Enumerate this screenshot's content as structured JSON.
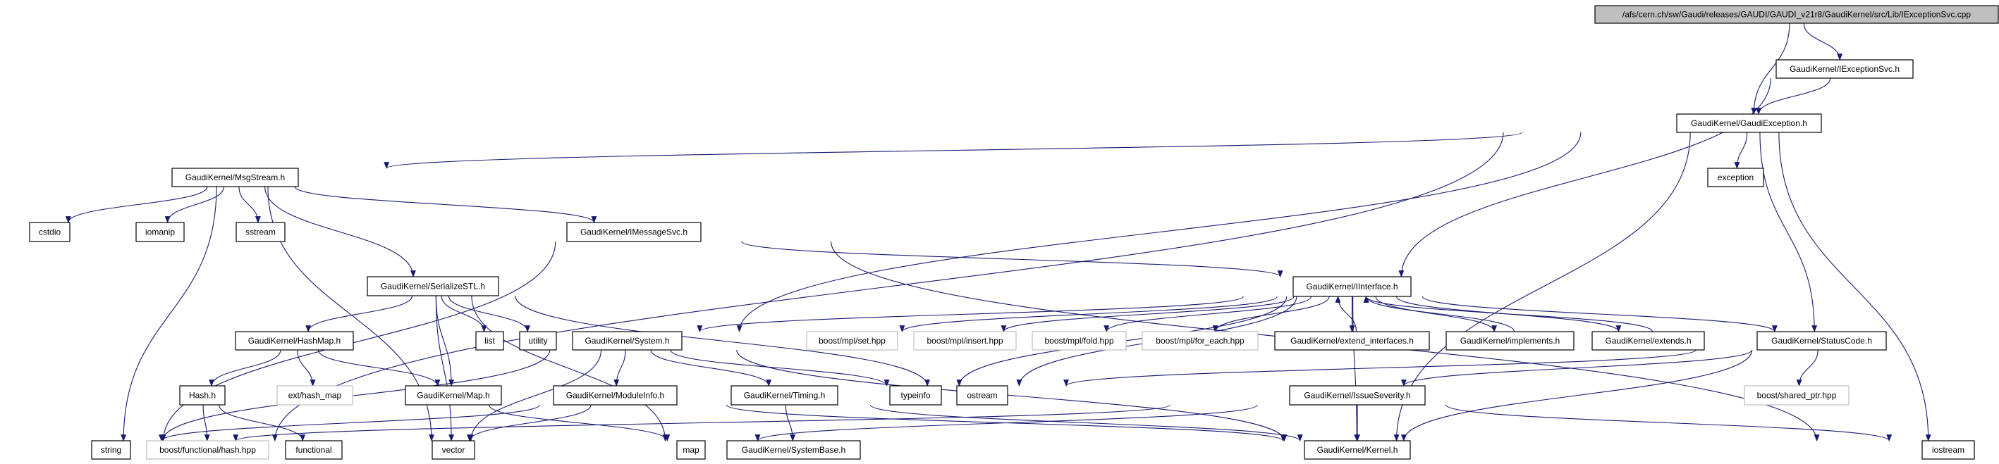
{
  "colors": {
    "edge": "#191970",
    "root_fill": "#bfbfbf",
    "missing_border": "#bfbfbf"
  },
  "nodes": {
    "root": {
      "label": "/afs/cern.ch/sw/Gaudi/releases/GAUDI/GAUDI_v21r8/GaudiKernel/src/Lib/IExceptionSvc.cpp",
      "kind": "root"
    },
    "IExceptionSvc": {
      "label": "GaudiKernel/IExceptionSvc.h"
    },
    "GaudiException": {
      "label": "GaudiKernel/GaudiException.h"
    },
    "MsgStream": {
      "label": "GaudiKernel/MsgStream.h"
    },
    "exception": {
      "label": "exception"
    },
    "cstdio": {
      "label": "cstdio"
    },
    "iomanip": {
      "label": "iomanip"
    },
    "sstream": {
      "label": "sstream"
    },
    "IMessageSvc": {
      "label": "GaudiKernel/IMessageSvc.h"
    },
    "SerializeSTL": {
      "label": "GaudiKernel/SerializeSTL.h"
    },
    "IInterface": {
      "label": "GaudiKernel/IInterface.h"
    },
    "HashMap": {
      "label": "GaudiKernel/HashMap.h"
    },
    "list": {
      "label": "list"
    },
    "utility": {
      "label": "utility"
    },
    "System": {
      "label": "GaudiKernel/System.h"
    },
    "set": {
      "label": "boost/mpl/set.hpp",
      "kind": "missing"
    },
    "insert": {
      "label": "boost/mpl/insert.hpp",
      "kind": "missing"
    },
    "fold": {
      "label": "boost/mpl/fold.hpp",
      "kind": "missing"
    },
    "for_each": {
      "label": "boost/mpl/for_each.hpp",
      "kind": "missing"
    },
    "extend_interfaces": {
      "label": "GaudiKernel/extend_interfaces.h"
    },
    "implements": {
      "label": "GaudiKernel/implements.h"
    },
    "extends": {
      "label": "GaudiKernel/extends.h"
    },
    "StatusCode": {
      "label": "GaudiKernel/StatusCode.h"
    },
    "Hash": {
      "label": "Hash.h"
    },
    "ext_hash_map": {
      "label": "ext/hash_map",
      "kind": "missing"
    },
    "Map": {
      "label": "GaudiKernel/Map.h"
    },
    "ModuleInfo": {
      "label": "GaudiKernel/ModuleInfo.h"
    },
    "Timing": {
      "label": "GaudiKernel/Timing.h"
    },
    "typeinfo": {
      "label": "typeinfo"
    },
    "ostream": {
      "label": "ostream"
    },
    "IssueSeverity": {
      "label": "GaudiKernel/IssueSeverity.h"
    },
    "shared_ptr": {
      "label": "boost/shared_ptr.hpp",
      "kind": "missing"
    },
    "string": {
      "label": "string"
    },
    "boost_hash": {
      "label": "boost/functional/hash.hpp",
      "kind": "missing"
    },
    "functional": {
      "label": "functional"
    },
    "vector": {
      "label": "vector"
    },
    "map": {
      "label": "map"
    },
    "SystemBase": {
      "label": "GaudiKernel/SystemBase.h"
    },
    "Kernel": {
      "label": "GaudiKernel/Kernel.h"
    },
    "iostream": {
      "label": "iostream"
    }
  },
  "edges": [
    [
      "root",
      "IExceptionSvc"
    ],
    [
      "root",
      "GaudiException"
    ],
    [
      "IExceptionSvc",
      "GaudiException"
    ],
    [
      "IExceptionSvc",
      "IInterface"
    ],
    [
      "GaudiException",
      "MsgStream"
    ],
    [
      "GaudiException",
      "string"
    ],
    [
      "GaudiException",
      "System"
    ],
    [
      "GaudiException",
      "exception"
    ],
    [
      "GaudiException",
      "StatusCode"
    ],
    [
      "GaudiException",
      "Kernel"
    ],
    [
      "GaudiException",
      "iostream"
    ],
    [
      "MsgStream",
      "cstdio"
    ],
    [
      "MsgStream",
      "iomanip"
    ],
    [
      "MsgStream",
      "sstream"
    ],
    [
      "MsgStream",
      "string"
    ],
    [
      "MsgStream",
      "vector"
    ],
    [
      "MsgStream",
      "SerializeSTL"
    ],
    [
      "MsgStream",
      "IMessageSvc"
    ],
    [
      "IMessageSvc",
      "string"
    ],
    [
      "IMessageSvc",
      "IInterface"
    ],
    [
      "IMessageSvc",
      "iostream"
    ],
    [
      "SerializeSTL",
      "HashMap"
    ],
    [
      "SerializeSTL",
      "list"
    ],
    [
      "SerializeSTL",
      "utility"
    ],
    [
      "SerializeSTL",
      "vector"
    ],
    [
      "SerializeSTL",
      "Map"
    ],
    [
      "SerializeSTL",
      "map"
    ],
    [
      "SerializeSTL",
      "ostream"
    ],
    [
      "HashMap",
      "Hash"
    ],
    [
      "HashMap",
      "ext_hash_map"
    ],
    [
      "HashMap",
      "Map"
    ],
    [
      "Hash",
      "boost_hash"
    ],
    [
      "Hash",
      "functional"
    ],
    [
      "Map",
      "map"
    ],
    [
      "System",
      "string"
    ],
    [
      "System",
      "vector"
    ],
    [
      "System",
      "ModuleInfo"
    ],
    [
      "System",
      "Timing"
    ],
    [
      "System",
      "typeinfo"
    ],
    [
      "System",
      "Kernel"
    ],
    [
      "ModuleInfo",
      "string"
    ],
    [
      "ModuleInfo",
      "vector"
    ],
    [
      "ModuleInfo",
      "Kernel"
    ],
    [
      "Timing",
      "SystemBase"
    ],
    [
      "Timing",
      "Kernel"
    ],
    [
      "IInterface",
      "System"
    ],
    [
      "IInterface",
      "set"
    ],
    [
      "IInterface",
      "insert"
    ],
    [
      "IInterface",
      "fold"
    ],
    [
      "IInterface",
      "for_each"
    ],
    [
      "IInterface",
      "extend_interfaces"
    ],
    [
      "IInterface",
      "implements"
    ],
    [
      "IInterface",
      "extends"
    ],
    [
      "IInterface",
      "StatusCode"
    ],
    [
      "IInterface",
      "typeinfo"
    ],
    [
      "IInterface",
      "ostream"
    ],
    [
      "IInterface",
      "Kernel"
    ],
    [
      "extend_interfaces",
      "IInterface"
    ],
    [
      "implements",
      "IInterface"
    ],
    [
      "extends",
      "IInterface"
    ],
    [
      "StatusCode",
      "ostream"
    ],
    [
      "StatusCode",
      "IssueSeverity"
    ],
    [
      "StatusCode",
      "shared_ptr"
    ],
    [
      "StatusCode",
      "Kernel"
    ],
    [
      "IssueSeverity",
      "Kernel"
    ],
    [
      "IssueSeverity",
      "iostream"
    ],
    [
      "IssueSeverity",
      "string"
    ],
    [
      "IssueSeverity",
      "map"
    ]
  ]
}
